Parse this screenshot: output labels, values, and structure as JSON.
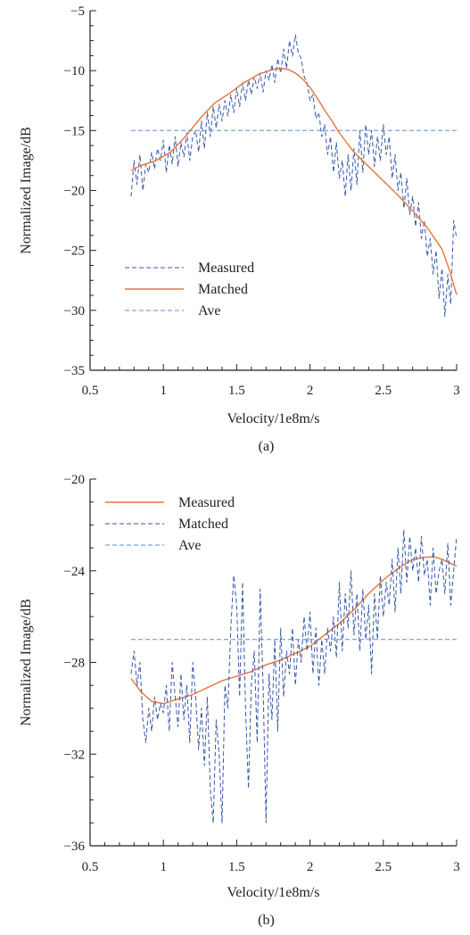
{
  "chart_data": [
    {
      "type": "line",
      "panel_label": "(a)",
      "xlabel": "Velocity/1e8m/s",
      "ylabel": "Normalized Image/dB",
      "xlim": [
        0.5,
        3
      ],
      "ylim": [
        -35,
        -5
      ],
      "xticks": [
        0.5,
        1,
        1.5,
        2,
        2.5,
        3
      ],
      "yticks": [
        -35,
        -30,
        -25,
        -20,
        -15,
        -10,
        -5
      ],
      "grid": false,
      "legend_position": "bottom-left",
      "series": [
        {
          "name": "Measured",
          "style": "dashed",
          "color": "#3557a8",
          "x": [
            0.78,
            0.8,
            0.82,
            0.84,
            0.86,
            0.88,
            0.9,
            0.92,
            0.94,
            0.96,
            0.98,
            1.0,
            1.02,
            1.04,
            1.06,
            1.08,
            1.1,
            1.12,
            1.14,
            1.16,
            1.18,
            1.2,
            1.22,
            1.24,
            1.26,
            1.28,
            1.3,
            1.32,
            1.34,
            1.36,
            1.38,
            1.4,
            1.42,
            1.44,
            1.46,
            1.48,
            1.5,
            1.52,
            1.54,
            1.56,
            1.58,
            1.6,
            1.62,
            1.64,
            1.66,
            1.68,
            1.7,
            1.72,
            1.74,
            1.76,
            1.78,
            1.8,
            1.82,
            1.84,
            1.86,
            1.88,
            1.9,
            1.92,
            1.94,
            1.96,
            1.98,
            2.0,
            2.02,
            2.04,
            2.06,
            2.08,
            2.1,
            2.12,
            2.14,
            2.16,
            2.18,
            2.2,
            2.22,
            2.24,
            2.26,
            2.28,
            2.3,
            2.32,
            2.34,
            2.36,
            2.38,
            2.4,
            2.42,
            2.44,
            2.46,
            2.48,
            2.5,
            2.52,
            2.54,
            2.56,
            2.58,
            2.6,
            2.62,
            2.64,
            2.66,
            2.68,
            2.7,
            2.72,
            2.74,
            2.76,
            2.78,
            2.8,
            2.82,
            2.84,
            2.86,
            2.88,
            2.9,
            2.92,
            2.94,
            2.96,
            2.98,
            3.0
          ],
          "y": [
            -20.5,
            -17.5,
            -19.5,
            -17.0,
            -20.0,
            -17.8,
            -18.5,
            -16.8,
            -18.2,
            -16.5,
            -17.5,
            -15.8,
            -18.5,
            -16.2,
            -17.8,
            -15.5,
            -18.0,
            -16.0,
            -17.2,
            -15.2,
            -17.5,
            -15.5,
            -15.0,
            -16.8,
            -14.2,
            -16.5,
            -13.5,
            -15.5,
            -13.0,
            -14.8,
            -12.8,
            -14.2,
            -12.5,
            -13.8,
            -12.0,
            -13.5,
            -11.5,
            -13.0,
            -11.0,
            -12.5,
            -10.8,
            -12.0,
            -10.5,
            -11.5,
            -10.2,
            -11.8,
            -10.0,
            -10.8,
            -9.5,
            -11.0,
            -9.0,
            -10.2,
            -8.2,
            -9.8,
            -7.5,
            -8.8,
            -7.0,
            -8.5,
            -9.0,
            -10.5,
            -11.0,
            -12.5,
            -12.0,
            -14.0,
            -13.5,
            -15.5,
            -14.5,
            -17.0,
            -15.5,
            -18.5,
            -16.0,
            -19.0,
            -17.5,
            -20.5,
            -17.0,
            -20.0,
            -16.5,
            -19.5,
            -15.0,
            -18.5,
            -14.5,
            -17.0,
            -15.0,
            -18.0,
            -15.5,
            -17.5,
            -14.5,
            -17.0,
            -15.5,
            -19.0,
            -17.0,
            -20.0,
            -18.5,
            -21.5,
            -19.0,
            -22.0,
            -20.5,
            -23.0,
            -21.0,
            -24.0,
            -22.5,
            -25.5,
            -24.0,
            -27.0,
            -25.0,
            -29.0,
            -26.5,
            -30.5,
            -27.0,
            -29.5,
            -22.5,
            -24.0
          ]
        },
        {
          "name": "Matched",
          "style": "solid",
          "color": "#e8733a",
          "x": [
            0.78,
            0.85,
            0.95,
            1.05,
            1.15,
            1.25,
            1.35,
            1.45,
            1.55,
            1.65,
            1.75,
            1.8,
            1.85,
            1.9,
            1.95,
            2.0,
            2.05,
            2.1,
            2.15,
            2.2,
            2.3,
            2.4,
            2.5,
            2.6,
            2.7,
            2.8,
            2.9,
            2.95,
            3.0
          ],
          "y": [
            -18.3,
            -17.9,
            -17.5,
            -16.8,
            -15.5,
            -14.0,
            -12.7,
            -11.9,
            -11.0,
            -10.3,
            -9.9,
            -9.8,
            -9.9,
            -10.2,
            -10.7,
            -11.4,
            -12.3,
            -13.3,
            -14.2,
            -15.2,
            -16.8,
            -18.0,
            -19.2,
            -20.4,
            -21.7,
            -23.1,
            -24.9,
            -26.6,
            -28.7
          ]
        },
        {
          "name": "Ave",
          "style": "dashed",
          "color": "#5b8dd9",
          "x": [
            0.78,
            3.0
          ],
          "y": [
            -15.0,
            -15.0
          ]
        }
      ]
    },
    {
      "type": "line",
      "panel_label": "(b)",
      "xlabel": "Velocity/1e8m/s",
      "ylabel": "Normalized Image/dB",
      "xlim": [
        0.5,
        3
      ],
      "ylim": [
        -36,
        -20
      ],
      "xticks": [
        0.5,
        1,
        1.5,
        2,
        2.5,
        3
      ],
      "yticks": [
        -36,
        -32,
        -28,
        -24,
        -20
      ],
      "grid": false,
      "legend_position": "top-left",
      "series": [
        {
          "name": "Measured",
          "style": "solid",
          "color": "#e8733a",
          "x": [
            0.78,
            0.85,
            0.92,
            1.0,
            1.1,
            1.2,
            1.3,
            1.4,
            1.5,
            1.6,
            1.7,
            1.8,
            1.9,
            2.0,
            2.1,
            2.2,
            2.3,
            2.4,
            2.5,
            2.6,
            2.7,
            2.8,
            2.85,
            2.9,
            3.0
          ],
          "y": [
            -28.7,
            -29.3,
            -29.7,
            -29.8,
            -29.6,
            -29.4,
            -29.1,
            -28.8,
            -28.6,
            -28.4,
            -28.1,
            -27.9,
            -27.6,
            -27.3,
            -26.8,
            -26.3,
            -25.7,
            -25.0,
            -24.4,
            -23.9,
            -23.5,
            -23.4,
            -23.4,
            -23.5,
            -23.8
          ]
        },
        {
          "name": "Matched",
          "style": "dashed",
          "color": "#3557a8",
          "x": [
            0.78,
            0.8,
            0.82,
            0.84,
            0.86,
            0.88,
            0.9,
            0.92,
            0.94,
            0.96,
            0.98,
            1.0,
            1.02,
            1.04,
            1.06,
            1.08,
            1.1,
            1.12,
            1.14,
            1.16,
            1.18,
            1.2,
            1.22,
            1.24,
            1.26,
            1.28,
            1.3,
            1.32,
            1.34,
            1.36,
            1.38,
            1.4,
            1.42,
            1.44,
            1.46,
            1.48,
            1.5,
            1.52,
            1.54,
            1.56,
            1.58,
            1.6,
            1.62,
            1.64,
            1.66,
            1.68,
            1.7,
            1.72,
            1.74,
            1.76,
            1.78,
            1.8,
            1.82,
            1.84,
            1.86,
            1.88,
            1.9,
            1.92,
            1.94,
            1.96,
            1.98,
            2.0,
            2.02,
            2.04,
            2.06,
            2.08,
            2.1,
            2.12,
            2.14,
            2.16,
            2.18,
            2.2,
            2.22,
            2.24,
            2.26,
            2.28,
            2.3,
            2.32,
            2.34,
            2.36,
            2.38,
            2.4,
            2.42,
            2.44,
            2.46,
            2.48,
            2.5,
            2.52,
            2.54,
            2.56,
            2.58,
            2.6,
            2.62,
            2.64,
            2.66,
            2.68,
            2.7,
            2.72,
            2.74,
            2.76,
            2.78,
            2.8,
            2.82,
            2.84,
            2.86,
            2.88,
            2.9,
            2.92,
            2.94,
            2.96,
            2.98,
            3.0
          ],
          "y": [
            -28.5,
            -27.5,
            -29.0,
            -28.0,
            -30.5,
            -31.5,
            -30.0,
            -31.0,
            -29.5,
            -30.5,
            -29.8,
            -30.2,
            -29.0,
            -31.0,
            -28.0,
            -29.5,
            -30.8,
            -28.5,
            -30.5,
            -29.0,
            -31.5,
            -28.0,
            -29.5,
            -31.8,
            -30.0,
            -32.5,
            -29.5,
            -33.5,
            -35.0,
            -30.5,
            -32.0,
            -35.0,
            -29.0,
            -30.0,
            -26.5,
            -24.2,
            -25.5,
            -29.5,
            -24.5,
            -30.0,
            -33.5,
            -29.0,
            -27.5,
            -31.5,
            -24.8,
            -29.0,
            -35.0,
            -28.5,
            -30.5,
            -27.0,
            -31.0,
            -26.5,
            -29.5,
            -27.5,
            -28.5,
            -26.5,
            -29.0,
            -27.0,
            -28.0,
            -26.0,
            -27.5,
            -25.8,
            -28.5,
            -26.5,
            -29.0,
            -27.0,
            -28.5,
            -26.5,
            -27.5,
            -26.0,
            -27.8,
            -24.5,
            -27.5,
            -25.0,
            -26.5,
            -24.0,
            -26.8,
            -25.0,
            -27.5,
            -24.8,
            -27.0,
            -25.5,
            -28.5,
            -25.0,
            -27.0,
            -24.2,
            -26.0,
            -24.5,
            -25.5,
            -23.5,
            -25.8,
            -23.0,
            -25.0,
            -22.2,
            -24.5,
            -22.5,
            -24.0,
            -23.0,
            -24.5,
            -22.5,
            -24.2,
            -23.5,
            -25.5,
            -23.0,
            -25.0,
            -24.0,
            -23.5,
            -25.0,
            -22.8,
            -25.5,
            -24.0,
            -22.5
          ]
        },
        {
          "name": "Ave",
          "style": "dashed",
          "color": "#5b8dd9",
          "x": [
            0.78,
            3.0
          ],
          "y": [
            -27.0,
            -27.0
          ]
        }
      ]
    }
  ]
}
